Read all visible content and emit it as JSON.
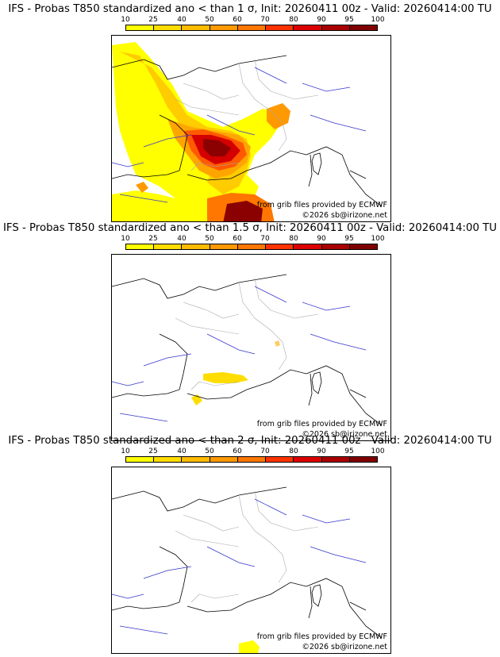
{
  "legend": {
    "ticks": [
      "10",
      "25",
      "40",
      "50",
      "60",
      "70",
      "80",
      "90",
      "95",
      "100"
    ],
    "colors": [
      "#ffff00",
      "#ffdd00",
      "#ffbb00",
      "#ff9900",
      "#ff7700",
      "#ff3300",
      "#dd0000",
      "#aa0000",
      "#800000"
    ]
  },
  "panels": [
    {
      "title": "IFS - Probas T850  standardized ano < than 1 σ, Init: 20260411 00z - Valid: 20260414:00 TU",
      "credit": "from grib files provided by ECMWF",
      "copyright": "©2026 sb@irizone.net"
    },
    {
      "title": "IFS - Probas T850  standardized ano < than 1.5 σ, Init: 20260411 00z - Valid: 20260414:00 TU",
      "credit": "from grib files provided by ECMWF",
      "copyright": "©2026 sb@irizone.net"
    },
    {
      "title": "IFS - Probas T850  standardized ano < than 2 σ, Init: 20260411 00z - Valid: 20260414:00 TU",
      "credit": "from grib files provided by ECMWF",
      "copyright": "©2026 sb@irizone.net"
    }
  ]
}
